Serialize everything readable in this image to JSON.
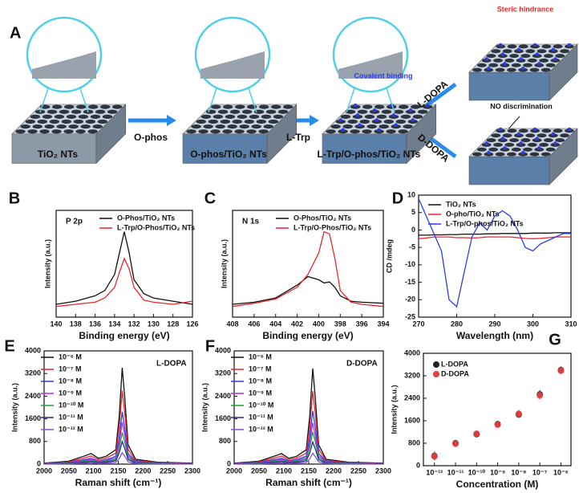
{
  "panel_a": {
    "label": "A",
    "substrate": "TiO₂ NTs",
    "reagent1": "O-phos",
    "step1": "O-phos/TiO₂ NTs",
    "reagent2": "L-Trp",
    "step2": "L-Trp/O-phos/TiO₂ NTs",
    "covalent": "Covalent binding",
    "ldopa": "L-DOPA",
    "ddopa": "D-DOPA",
    "steric": "Steric hindrance",
    "nodisc": "NO discrimination"
  },
  "chart_data": [
    {
      "type": "line",
      "panel": "B",
      "annotation": "P 2p",
      "xlabel": "Binding energy (eV)",
      "ylabel": "Intensity (a.u.)",
      "x": [
        140,
        138,
        136,
        135,
        134,
        133.5,
        133,
        132.5,
        132,
        131,
        130,
        128,
        126
      ],
      "xlim": [
        140,
        126
      ],
      "xticks": [
        140,
        138,
        136,
        134,
        132,
        130,
        128,
        126
      ],
      "ylim": [
        0,
        100
      ],
      "series": [
        {
          "name": "O-Phos/TiO₂ NTs",
          "color": "#111111",
          "values": [
            12,
            15,
            20,
            25,
            40,
            60,
            80,
            60,
            35,
            22,
            18,
            15,
            12
          ]
        },
        {
          "name": "L-Trp/O-Phos/TiO₂ NTs",
          "color": "#e8262a",
          "values": [
            10,
            12,
            14,
            18,
            28,
            42,
            55,
            45,
            28,
            16,
            14,
            12,
            15
          ]
        }
      ]
    },
    {
      "type": "line",
      "panel": "C",
      "annotation": "N 1s",
      "xlabel": "Binding energy (eV)",
      "ylabel": "Intensity (a.u.)",
      "x": [
        408,
        406,
        404,
        402,
        401,
        400,
        399.5,
        399,
        398.5,
        398,
        397,
        396,
        394
      ],
      "xlim": [
        408,
        394
      ],
      "xticks": [
        408,
        406,
        404,
        402,
        400,
        398,
        396,
        394
      ],
      "ylim": [
        0,
        100
      ],
      "series": [
        {
          "name": "O-Phos/TiO₂ NTs",
          "color": "#111111",
          "values": [
            12,
            14,
            18,
            30,
            38,
            35,
            32,
            33,
            28,
            20,
            15,
            14,
            13
          ]
        },
        {
          "name": "L-Trp/O-Phos/TiO₂ NTs",
          "color": "#e8262a",
          "values": [
            10,
            13,
            17,
            28,
            40,
            60,
            80,
            78,
            55,
            25,
            14,
            12,
            10
          ]
        }
      ]
    },
    {
      "type": "line",
      "panel": "D",
      "xlabel": "Wavelength (nm)",
      "ylabel": "CD /mdeg",
      "x": [
        270,
        272,
        274,
        276,
        278,
        280,
        282,
        284,
        286,
        288,
        290,
        292,
        294,
        296,
        298,
        300,
        302,
        304,
        306,
        308,
        310
      ],
      "xlim": [
        270,
        310
      ],
      "xticks": [
        270,
        280,
        290,
        300,
        310
      ],
      "ylim": [
        -25,
        10
      ],
      "yticks": [
        10,
        5,
        0,
        -5,
        -10,
        -15,
        -20,
        -25
      ],
      "series": [
        {
          "name": "TiO₂ NTs",
          "color": "#111111",
          "values": [
            -1.5,
            -1.5,
            -1.4,
            -1.4,
            -1.3,
            -1.3,
            -1.2,
            -1.2,
            -1.2,
            -1.1,
            -1.1,
            -1,
            -1,
            -1,
            -1,
            -0.9,
            -0.9,
            -0.9,
            -0.8,
            -0.8,
            -0.8
          ]
        },
        {
          "name": "O-pho/TiO₂ NTs",
          "color": "#e8262a",
          "values": [
            -2.5,
            -2.3,
            -2,
            -2,
            -2,
            -2.2,
            -2.2,
            -2.3,
            -2.2,
            -2,
            -2,
            -2,
            -2,
            -2.2,
            -2.4,
            -2.5,
            -2.4,
            -2.2,
            -2,
            -2,
            -2
          ]
        },
        {
          "name": "L-Trp/O-phos/TiO₂ NTs",
          "color": "#2a3ee8",
          "values": [
            9,
            4,
            -1,
            -6,
            -20,
            -22,
            -12,
            -2,
            2,
            0,
            4,
            5.5,
            4,
            0,
            -5,
            -6,
            -4,
            -3,
            -2,
            -1,
            -1
          ]
        }
      ]
    },
    {
      "type": "line",
      "panel": "E",
      "annotation": "L-DOPA",
      "xlabel": "Raman shift (cm⁻¹)",
      "ylabel": "Intensity (a.u.)",
      "x": [
        2000,
        2050,
        2085,
        2095,
        2110,
        2125,
        2145,
        2152,
        2158,
        2163,
        2170,
        2185,
        2230,
        2300
      ],
      "xlim": [
        2000,
        2300
      ],
      "xticks": [
        2000,
        2050,
        2100,
        2150,
        2200,
        2250,
        2300
      ],
      "ylim": [
        0,
        4000
      ],
      "yticks": [
        0,
        800,
        1600,
        2400,
        3200,
        4000
      ],
      "series": [
        {
          "name": "10⁻⁶ M",
          "color": "#111111",
          "values": [
            34,
            102,
            306,
            374,
            204,
            272,
            510,
            1700,
            3400,
            2380,
            680,
            170,
            68,
            34
          ]
        },
        {
          "name": "10⁻⁷ M",
          "color": "#e8262a",
          "values": [
            26,
            78,
            234,
            286,
            156,
            208,
            390,
            1300,
            2600,
            1820,
            520,
            130,
            52,
            26
          ]
        },
        {
          "name": "10⁻⁸ M",
          "color": "#2a3ee8",
          "values": [
            19,
            56,
            167,
            204,
            111,
            148,
            278,
            925,
            1850,
            1295,
            370,
            93,
            37,
            19
          ]
        },
        {
          "name": "10⁻⁹ M",
          "color": "#b42ee0",
          "values": [
            15,
            44,
            133,
            163,
            89,
            118,
            222,
            740,
            1480,
            1036,
            296,
            74,
            30,
            15
          ]
        },
        {
          "name": "10⁻¹⁰ M",
          "color": "#1fa335",
          "values": [
            11,
            34,
            101,
            123,
            67,
            90,
            168,
            560,
            1120,
            784,
            224,
            56,
            22,
            11
          ]
        },
        {
          "name": "10⁻¹¹ M",
          "color": "#1c2a8c",
          "values": [
            8,
            24,
            72,
            88,
            48,
            64,
            120,
            400,
            800,
            560,
            160,
            40,
            16,
            8
          ]
        },
        {
          "name": "10⁻¹² M",
          "color": "#8a4bd6",
          "values": [
            4,
            12,
            36,
            44,
            24,
            32,
            60,
            200,
            400,
            280,
            80,
            20,
            8,
            4
          ]
        }
      ]
    },
    {
      "type": "line",
      "panel": "F",
      "annotation": "D-DOPA",
      "xlabel": "Raman shift (cm⁻¹)",
      "ylabel": "Intensity (a.u.)",
      "x": [
        2000,
        2050,
        2085,
        2095,
        2110,
        2125,
        2145,
        2152,
        2158,
        2163,
        2170,
        2185,
        2230,
        2300
      ],
      "xlim": [
        2000,
        2300
      ],
      "xticks": [
        2000,
        2050,
        2100,
        2150,
        2200,
        2250,
        2300
      ],
      "ylim": [
        0,
        4000
      ],
      "yticks": [
        0,
        800,
        1600,
        2400,
        3200,
        4000
      ],
      "series": [
        {
          "name": "10⁻⁶ M",
          "color": "#111111",
          "values": [
            34,
            101,
            304,
            372,
            203,
            270,
            507,
            1690,
            3380,
            2366,
            676,
            169,
            68,
            34
          ]
        },
        {
          "name": "10⁻⁷ M",
          "color": "#e8262a",
          "values": [
            26,
            77,
            232,
            284,
            155,
            206,
            387,
            1290,
            2580,
            1806,
            516,
            129,
            52,
            26
          ]
        },
        {
          "name": "10⁻⁸ M",
          "color": "#2a3ee8",
          "values": [
            19,
            56,
            169,
            207,
            113,
            150,
            282,
            940,
            1880,
            1316,
            376,
            94,
            38,
            19
          ]
        },
        {
          "name": "10⁻⁹ M",
          "color": "#b42ee0",
          "values": [
            15,
            44,
            131,
            161,
            88,
            117,
            219,
            730,
            1460,
            1022,
            292,
            73,
            29,
            15
          ]
        },
        {
          "name": "10⁻¹⁰ M",
          "color": "#1fa335",
          "values": [
            11,
            34,
            103,
            125,
            68,
            91,
            171,
            570,
            1140,
            798,
            228,
            57,
            23,
            11
          ]
        },
        {
          "name": "10⁻¹¹ M",
          "color": "#1c2a8c",
          "values": [
            8,
            23,
            70,
            86,
            47,
            62,
            117,
            390,
            780,
            546,
            156,
            39,
            16,
            8
          ]
        },
        {
          "name": "10⁻¹² M",
          "color": "#8a4bd6",
          "values": [
            4,
            11,
            34,
            42,
            23,
            30,
            57,
            190,
            380,
            266,
            76,
            19,
            8,
            4
          ]
        }
      ]
    },
    {
      "type": "scatter",
      "panel": "G",
      "xlabel": "Concentration (M)",
      "ylabel": "Intensity (a.u.)",
      "xscale": "log",
      "x": [
        1e-12,
        1e-11,
        1e-10,
        1e-09,
        1e-08,
        1e-07,
        1e-06
      ],
      "xlim": [
        3e-13,
        3e-06
      ],
      "xticks": [
        {
          "value": 1e-12,
          "label": "10⁻¹²"
        },
        {
          "value": 1e-11,
          "label": "10⁻¹¹"
        },
        {
          "value": 1e-10,
          "label": "10⁻¹⁰"
        },
        {
          "value": 1e-09,
          "label": "10⁻⁹"
        },
        {
          "value": 1e-08,
          "label": "10⁻⁸"
        },
        {
          "value": 1e-07,
          "label": "10⁻⁷"
        },
        {
          "value": 1e-06,
          "label": "10⁻⁶"
        }
      ],
      "ylim": [
        0,
        4000
      ],
      "yticks": [
        0,
        800,
        1600,
        2400,
        3200,
        4000
      ],
      "series": [
        {
          "name": "L-DOPA",
          "color": "#222222",
          "values": [
            350,
            800,
            1120,
            1480,
            1820,
            2540,
            3400
          ],
          "errors": [
            150,
            120,
            100,
            110,
            120,
            150,
            130
          ]
        },
        {
          "name": "D-DOPA",
          "color": "#ee3b3b",
          "values": [
            330,
            780,
            1140,
            1460,
            1850,
            2500,
            3380
          ],
          "errors": [
            140,
            110,
            110,
            100,
            130,
            140,
            120
          ]
        }
      ]
    }
  ]
}
